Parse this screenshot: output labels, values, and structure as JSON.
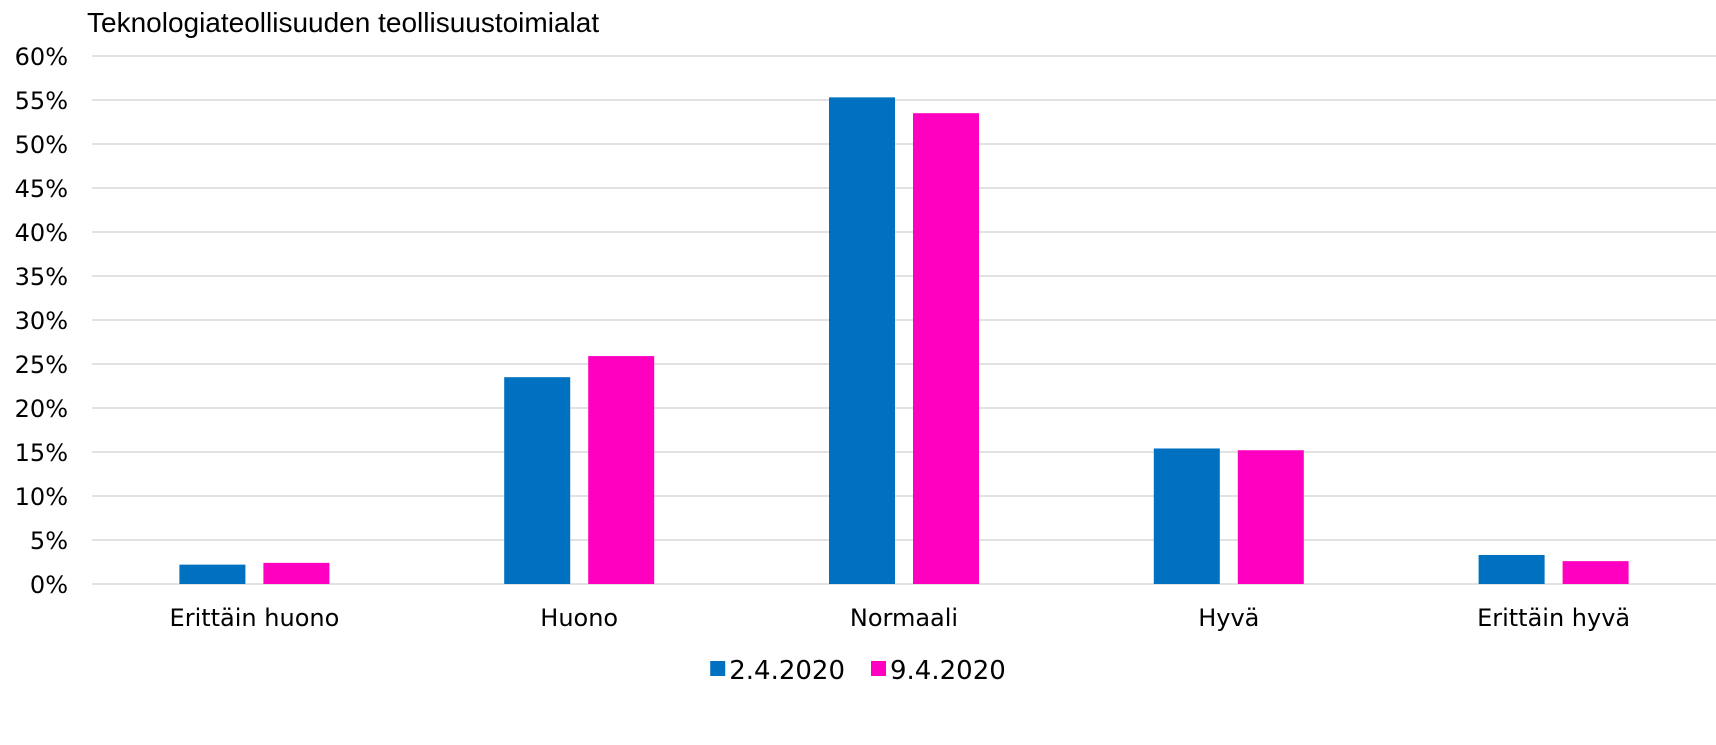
{
  "chart_data": {
    "type": "bar",
    "title": "Teknologiateollisuuden teollisuustoimialat",
    "xlabel": "",
    "ylabel": "",
    "categories": [
      "Erittäin huono",
      "Huono",
      "Normaali",
      "Hyvä",
      "Erittäin hyvä"
    ],
    "series": [
      {
        "name": "2.4.2020",
        "color": "#0070C0",
        "values": [
          2.2,
          23.5,
          55.3,
          15.4,
          3.3
        ]
      },
      {
        "name": "9.4.2020",
        "color": "#FF00C0",
        "values": [
          2.4,
          25.9,
          53.5,
          15.2,
          2.6
        ]
      }
    ],
    "ylim": [
      0,
      60
    ],
    "yticks": [
      "0%",
      "5%",
      "10%",
      "15%",
      "20%",
      "25%",
      "30%",
      "35%",
      "40%",
      "45%",
      "50%",
      "55%",
      "60%"
    ],
    "grid": true,
    "legend": "bottom"
  }
}
